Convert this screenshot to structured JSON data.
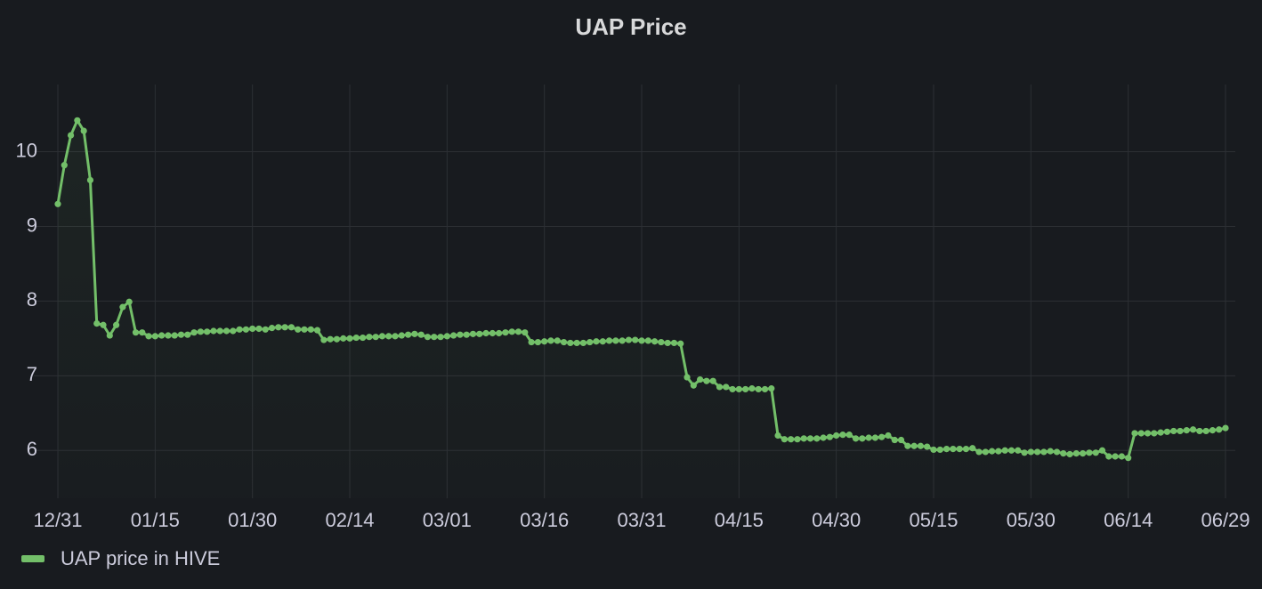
{
  "chart_data": {
    "type": "line",
    "title": "UAP Price",
    "x": [
      "12/31",
      "01/01",
      "01/02",
      "01/03",
      "01/04",
      "01/05",
      "01/06",
      "01/07",
      "01/08",
      "01/09",
      "01/10",
      "01/11",
      "01/12",
      "01/13",
      "01/14",
      "01/15",
      "01/16",
      "01/17",
      "01/18",
      "01/19",
      "01/20",
      "01/21",
      "01/22",
      "01/23",
      "01/24",
      "01/25",
      "01/26",
      "01/27",
      "01/28",
      "01/29",
      "01/30",
      "01/31",
      "02/01",
      "02/02",
      "02/03",
      "02/04",
      "02/05",
      "02/06",
      "02/07",
      "02/08",
      "02/09",
      "02/10",
      "02/11",
      "02/12",
      "02/13",
      "02/14",
      "02/15",
      "02/16",
      "02/17",
      "02/18",
      "02/19",
      "02/20",
      "02/21",
      "02/22",
      "02/23",
      "02/24",
      "02/25",
      "02/26",
      "02/27",
      "02/28",
      "03/01",
      "03/02",
      "03/03",
      "03/04",
      "03/05",
      "03/06",
      "03/07",
      "03/08",
      "03/09",
      "03/10",
      "03/11",
      "03/12",
      "03/13",
      "03/14",
      "03/15",
      "03/16",
      "03/17",
      "03/18",
      "03/19",
      "03/20",
      "03/21",
      "03/22",
      "03/23",
      "03/24",
      "03/25",
      "03/26",
      "03/27",
      "03/28",
      "03/29",
      "03/30",
      "03/31",
      "04/01",
      "04/02",
      "04/03",
      "04/04",
      "04/05",
      "04/06",
      "04/07",
      "04/08",
      "04/09",
      "04/10",
      "04/11",
      "04/12",
      "04/13",
      "04/14",
      "04/15",
      "04/16",
      "04/17",
      "04/18",
      "04/19",
      "04/20",
      "04/21",
      "04/22",
      "04/23",
      "04/24",
      "04/25",
      "04/26",
      "04/27",
      "04/28",
      "04/29",
      "04/30",
      "05/01",
      "05/02",
      "05/03",
      "05/04",
      "05/05",
      "05/06",
      "05/07",
      "05/08",
      "05/09",
      "05/10",
      "05/11",
      "05/12",
      "05/13",
      "05/14",
      "05/15",
      "05/16",
      "05/17",
      "05/18",
      "05/19",
      "05/20",
      "05/21",
      "05/22",
      "05/23",
      "05/24",
      "05/25",
      "05/26",
      "05/27",
      "05/28",
      "05/29",
      "05/30",
      "05/31",
      "06/01",
      "06/02",
      "06/03",
      "06/04",
      "06/05",
      "06/06",
      "06/07",
      "06/08",
      "06/09",
      "06/10",
      "06/11",
      "06/12",
      "06/13",
      "06/14",
      "06/15",
      "06/16",
      "06/17",
      "06/18",
      "06/19",
      "06/20",
      "06/21",
      "06/22",
      "06/23",
      "06/24",
      "06/25",
      "06/26",
      "06/27",
      "06/28",
      "06/29"
    ],
    "series": [
      {
        "name": "UAP price in HIVE",
        "color": "#73bf69",
        "values": [
          9.3,
          9.82,
          10.22,
          10.42,
          10.28,
          9.62,
          7.7,
          7.68,
          7.54,
          7.68,
          7.92,
          7.99,
          7.58,
          7.58,
          7.53,
          7.53,
          7.54,
          7.54,
          7.54,
          7.55,
          7.55,
          7.58,
          7.59,
          7.59,
          7.6,
          7.6,
          7.6,
          7.6,
          7.62,
          7.62,
          7.63,
          7.63,
          7.62,
          7.64,
          7.65,
          7.65,
          7.65,
          7.62,
          7.62,
          7.62,
          7.61,
          7.48,
          7.49,
          7.49,
          7.5,
          7.5,
          7.51,
          7.51,
          7.52,
          7.52,
          7.53,
          7.53,
          7.53,
          7.54,
          7.55,
          7.56,
          7.55,
          7.52,
          7.52,
          7.52,
          7.53,
          7.54,
          7.55,
          7.55,
          7.56,
          7.56,
          7.57,
          7.57,
          7.57,
          7.58,
          7.59,
          7.59,
          7.58,
          7.45,
          7.45,
          7.46,
          7.47,
          7.47,
          7.45,
          7.44,
          7.44,
          7.44,
          7.45,
          7.46,
          7.46,
          7.47,
          7.47,
          7.47,
          7.48,
          7.48,
          7.47,
          7.47,
          7.46,
          7.45,
          7.44,
          7.44,
          7.43,
          6.98,
          6.87,
          6.95,
          6.93,
          6.93,
          6.85,
          6.85,
          6.82,
          6.82,
          6.82,
          6.83,
          6.82,
          6.82,
          6.83,
          6.2,
          6.15,
          6.15,
          6.15,
          6.16,
          6.16,
          6.16,
          6.17,
          6.18,
          6.2,
          6.21,
          6.21,
          6.16,
          6.16,
          6.17,
          6.17,
          6.18,
          6.2,
          6.14,
          6.14,
          6.06,
          6.06,
          6.06,
          6.05,
          6.01,
          6.01,
          6.02,
          6.02,
          6.02,
          6.02,
          6.03,
          5.98,
          5.98,
          5.99,
          5.99,
          6.0,
          6.0,
          6.0,
          5.97,
          5.98,
          5.98,
          5.98,
          5.99,
          5.98,
          5.96,
          5.95,
          5.96,
          5.96,
          5.97,
          5.97,
          6.0,
          5.92,
          5.92,
          5.92,
          5.9,
          6.23,
          6.23,
          6.23,
          6.23,
          6.24,
          6.25,
          6.26,
          6.26,
          6.27,
          6.28,
          6.26,
          6.26,
          6.27,
          6.28,
          6.3
        ]
      }
    ],
    "ylim": [
      5.36,
      10.9
    ],
    "yticks": [
      6,
      7,
      8,
      9,
      10
    ],
    "xticks": [
      "12/31",
      "01/15",
      "01/30",
      "02/14",
      "03/01",
      "03/16",
      "03/31",
      "04/15",
      "04/30",
      "05/15",
      "05/30",
      "06/14",
      "06/29"
    ],
    "grid": true,
    "legend": "bottom-left"
  }
}
